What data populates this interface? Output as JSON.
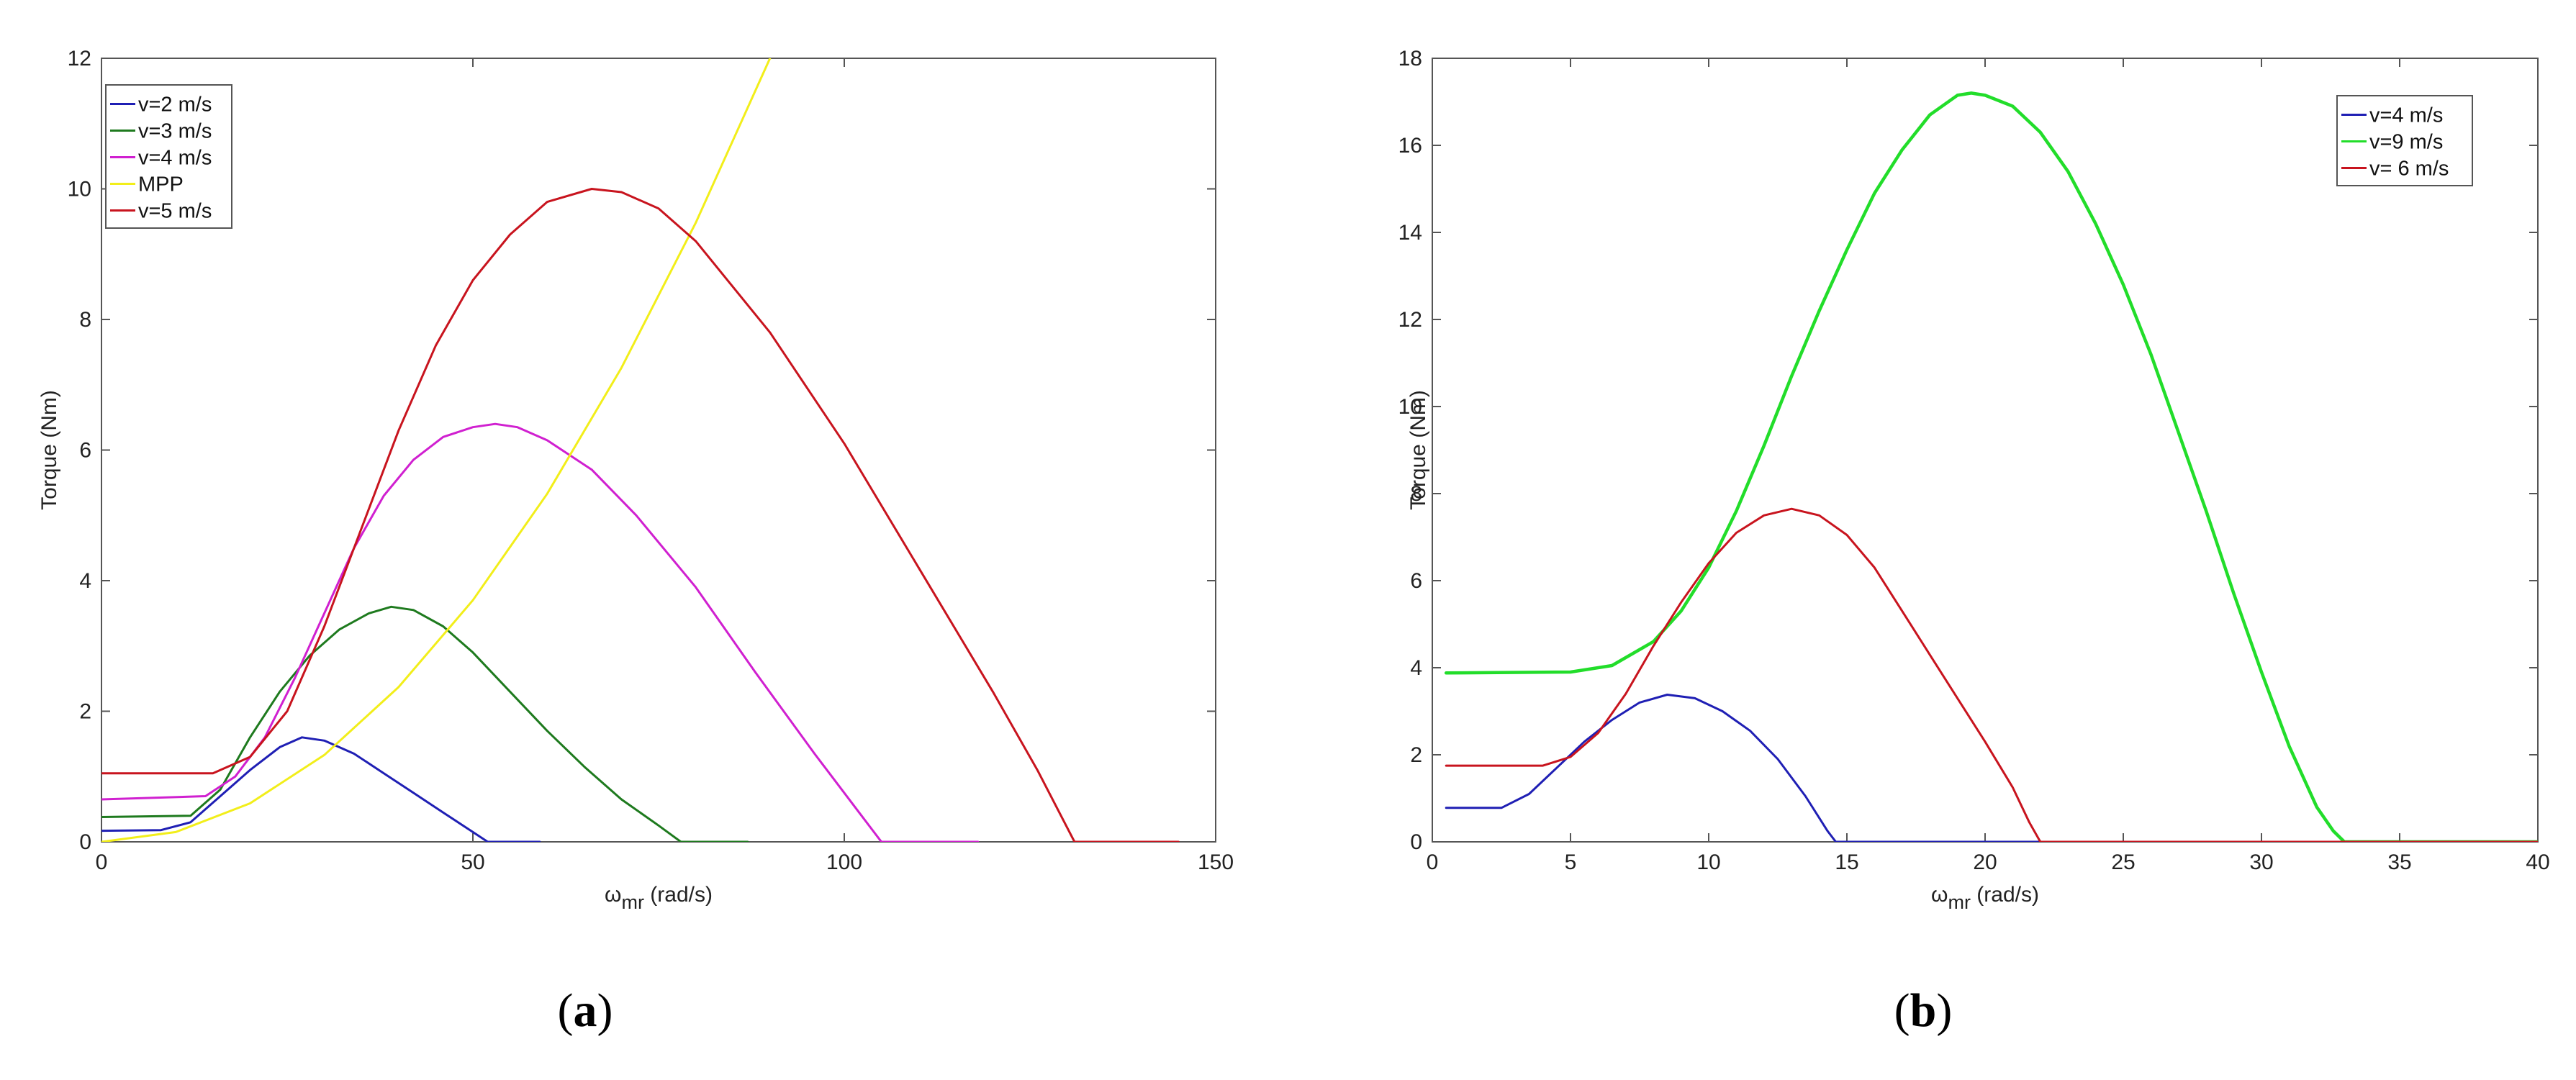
{
  "figure": {
    "captions": [
      {
        "open": "(",
        "letter": "a",
        "close": ")"
      },
      {
        "open": "(",
        "letter": "b",
        "close": ")"
      }
    ]
  },
  "chart_data": [
    {
      "type": "line",
      "xlabel": "ω",
      "xlabel_sub": "mr",
      "xlabel_unit": "(rad/s)",
      "ylabel": "Torque (Nm)",
      "xlim": [
        0,
        150
      ],
      "ylim": [
        0,
        12
      ],
      "xticks": [
        0,
        50,
        100,
        150
      ],
      "yticks": [
        0,
        2,
        4,
        6,
        8,
        10,
        12
      ],
      "grid": false,
      "legend_position": "top-left",
      "series": [
        {
          "name": "v=2 m/s",
          "color": "#1f1fb4",
          "points": [
            [
              0,
              0.17
            ],
            [
              8,
              0.18
            ],
            [
              12,
              0.3
            ],
            [
              16,
              0.7
            ],
            [
              20,
              1.1
            ],
            [
              24,
              1.45
            ],
            [
              27,
              1.6
            ],
            [
              30,
              1.55
            ],
            [
              34,
              1.35
            ],
            [
              38,
              1.05
            ],
            [
              42,
              0.75
            ],
            [
              46,
              0.45
            ],
            [
              50,
              0.15
            ],
            [
              52,
              0.0
            ],
            [
              59,
              0.0
            ]
          ]
        },
        {
          "name": "v=3 m/s",
          "color": "#1e7a1e",
          "points": [
            [
              0,
              0.38
            ],
            [
              12,
              0.4
            ],
            [
              16,
              0.8
            ],
            [
              20,
              1.6
            ],
            [
              24,
              2.3
            ],
            [
              28,
              2.85
            ],
            [
              32,
              3.25
            ],
            [
              36,
              3.5
            ],
            [
              39,
              3.6
            ],
            [
              42,
              3.55
            ],
            [
              46,
              3.3
            ],
            [
              50,
              2.9
            ],
            [
              55,
              2.3
            ],
            [
              60,
              1.7
            ],
            [
              65,
              1.15
            ],
            [
              70,
              0.65
            ],
            [
              75,
              0.25
            ],
            [
              78,
              0.0
            ],
            [
              87,
              0.0
            ]
          ]
        },
        {
          "name": "v=4 m/s",
          "color": "#d020d0",
          "points": [
            [
              0,
              0.65
            ],
            [
              14,
              0.7
            ],
            [
              18,
              1.0
            ],
            [
              22,
              1.6
            ],
            [
              26,
              2.5
            ],
            [
              30,
              3.5
            ],
            [
              34,
              4.5
            ],
            [
              38,
              5.3
            ],
            [
              42,
              5.85
            ],
            [
              46,
              6.2
            ],
            [
              50,
              6.35
            ],
            [
              53,
              6.4
            ],
            [
              56,
              6.35
            ],
            [
              60,
              6.15
            ],
            [
              66,
              5.7
            ],
            [
              72,
              5.0
            ],
            [
              80,
              3.9
            ],
            [
              88,
              2.6
            ],
            [
              96,
              1.35
            ],
            [
              102,
              0.45
            ],
            [
              105,
              0.0
            ],
            [
              118,
              0.0
            ]
          ]
        },
        {
          "name": "MPP",
          "color": "#f2ee1a",
          "points": [
            [
              0,
              0.0
            ],
            [
              10,
              0.15
            ],
            [
              20,
              0.59
            ],
            [
              30,
              1.33
            ],
            [
              40,
              2.37
            ],
            [
              50,
              3.7
            ],
            [
              60,
              5.33
            ],
            [
              70,
              7.26
            ],
            [
              80,
              9.48
            ],
            [
              90,
              12.0
            ]
          ]
        },
        {
          "name": "v=5 m/s",
          "color": "#c8141e",
          "points": [
            [
              0,
              1.05
            ],
            [
              15,
              1.05
            ],
            [
              20,
              1.3
            ],
            [
              25,
              2.0
            ],
            [
              30,
              3.3
            ],
            [
              35,
              4.8
            ],
            [
              40,
              6.3
            ],
            [
              45,
              7.6
            ],
            [
              50,
              8.6
            ],
            [
              55,
              9.3
            ],
            [
              60,
              9.8
            ],
            [
              66,
              10.0
            ],
            [
              70,
              9.95
            ],
            [
              75,
              9.7
            ],
            [
              80,
              9.2
            ],
            [
              90,
              7.8
            ],
            [
              100,
              6.1
            ],
            [
              110,
              4.2
            ],
            [
              120,
              2.3
            ],
            [
              126,
              1.1
            ],
            [
              131,
              0.0
            ],
            [
              145,
              0.0
            ]
          ]
        }
      ]
    },
    {
      "type": "line",
      "xlabel": "ω",
      "xlabel_sub": "mr",
      "xlabel_unit": "(rad/s)",
      "ylabel": "Torque (Nm)",
      "xlim": [
        0,
        40
      ],
      "ylim": [
        0,
        18
      ],
      "xticks": [
        0,
        5,
        10,
        15,
        20,
        25,
        30,
        35,
        40
      ],
      "yticks": [
        0,
        2,
        4,
        6,
        8,
        10,
        12,
        14,
        16,
        18
      ],
      "grid": false,
      "legend_position": "top-right",
      "series": [
        {
          "name": "v=4 m/s",
          "color": "#1f1fb4",
          "points": [
            [
              0.5,
              0.78
            ],
            [
              2.5,
              0.78
            ],
            [
              3.5,
              1.1
            ],
            [
              4.5,
              1.7
            ],
            [
              5.5,
              2.3
            ],
            [
              6.5,
              2.8
            ],
            [
              7.5,
              3.2
            ],
            [
              8.5,
              3.38
            ],
            [
              9.5,
              3.3
            ],
            [
              10.5,
              3.0
            ],
            [
              11.5,
              2.55
            ],
            [
              12.5,
              1.9
            ],
            [
              13.5,
              1.05
            ],
            [
              14.3,
              0.25
            ],
            [
              14.6,
              0.0
            ],
            [
              40,
              0.0
            ]
          ]
        },
        {
          "name": "v=9 m/s",
          "color": "#22dd2a",
          "points": [
            [
              0.5,
              3.88
            ],
            [
              5,
              3.9
            ],
            [
              6.5,
              4.05
            ],
            [
              8,
              4.6
            ],
            [
              9,
              5.3
            ],
            [
              10,
              6.3
            ],
            [
              11,
              7.6
            ],
            [
              12,
              9.1
            ],
            [
              13,
              10.7
            ],
            [
              14,
              12.2
            ],
            [
              15,
              13.6
            ],
            [
              16,
              14.9
            ],
            [
              17,
              15.9
            ],
            [
              18,
              16.7
            ],
            [
              19,
              17.15
            ],
            [
              19.5,
              17.2
            ],
            [
              20,
              17.15
            ],
            [
              21,
              16.9
            ],
            [
              22,
              16.3
            ],
            [
              23,
              15.4
            ],
            [
              24,
              14.2
            ],
            [
              25,
              12.8
            ],
            [
              26,
              11.2
            ],
            [
              27,
              9.4
            ],
            [
              28,
              7.6
            ],
            [
              29,
              5.7
            ],
            [
              30,
              3.9
            ],
            [
              31,
              2.2
            ],
            [
              32,
              0.8
            ],
            [
              32.6,
              0.25
            ],
            [
              33,
              0.0
            ],
            [
              40,
              0.0
            ]
          ]
        },
        {
          "name": "v= 6 m/s",
          "color": "#c8141e",
          "points": [
            [
              0.5,
              1.75
            ],
            [
              4,
              1.75
            ],
            [
              5,
              1.95
            ],
            [
              6,
              2.5
            ],
            [
              7,
              3.4
            ],
            [
              8,
              4.5
            ],
            [
              9,
              5.5
            ],
            [
              10,
              6.4
            ],
            [
              11,
              7.1
            ],
            [
              12,
              7.5
            ],
            [
              13,
              7.65
            ],
            [
              14,
              7.5
            ],
            [
              15,
              7.05
            ],
            [
              16,
              6.3
            ],
            [
              17,
              5.3
            ],
            [
              18,
              4.3
            ],
            [
              19,
              3.3
            ],
            [
              20,
              2.3
            ],
            [
              21,
              1.25
            ],
            [
              21.6,
              0.45
            ],
            [
              22,
              0.0
            ],
            [
              40,
              0.0
            ]
          ]
        }
      ]
    }
  ]
}
